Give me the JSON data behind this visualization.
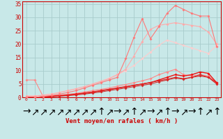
{
  "xlabel": "Vent moyen/en rafales ( km/h )",
  "xlim": [
    -0.5,
    23.5
  ],
  "ylim": [
    0,
    36
  ],
  "yticks": [
    0,
    5,
    10,
    15,
    20,
    25,
    30,
    35
  ],
  "xticks": [
    0,
    1,
    2,
    3,
    4,
    5,
    6,
    7,
    8,
    9,
    10,
    11,
    12,
    13,
    14,
    15,
    16,
    17,
    18,
    19,
    20,
    21,
    22,
    23
  ],
  "bg_color": "#c8e8e8",
  "grid_color": "#a8cccc",
  "series": [
    {
      "x": [
        0,
        1,
        2,
        3,
        4,
        5,
        6,
        7,
        8,
        9,
        10,
        11,
        12,
        13,
        14,
        15,
        16,
        17,
        18,
        19,
        20,
        21,
        22,
        23
      ],
      "y": [
        6.5,
        6.5,
        0.4,
        0.5,
        0.8,
        1.1,
        1.5,
        2.0,
        2.5,
        3.0,
        3.5,
        4.2,
        4.8,
        5.5,
        6.2,
        7.0,
        8.5,
        9.5,
        10.5,
        8.5,
        8.0,
        8.5,
        8.0,
        5.5
      ],
      "color": "#ff8888",
      "lw": 0.8,
      "ms": 2.0
    },
    {
      "x": [
        0,
        1,
        2,
        3,
        4,
        5,
        6,
        7,
        8,
        9,
        10,
        11,
        12,
        13,
        14,
        15,
        16,
        17,
        18,
        19,
        20,
        21,
        22,
        23
      ],
      "y": [
        0.0,
        0.0,
        0.1,
        0.2,
        0.4,
        0.6,
        0.9,
        1.2,
        1.6,
        2.0,
        2.5,
        3.0,
        3.5,
        4.0,
        4.5,
        5.0,
        5.8,
        6.5,
        7.2,
        6.8,
        7.5,
        8.5,
        7.5,
        5.5
      ],
      "color": "#cc3333",
      "lw": 0.8,
      "ms": 2.0
    },
    {
      "x": [
        0,
        1,
        2,
        3,
        4,
        5,
        6,
        7,
        8,
        9,
        10,
        11,
        12,
        13,
        14,
        15,
        16,
        17,
        18,
        19,
        20,
        21,
        22,
        23
      ],
      "y": [
        0.0,
        0.0,
        0.2,
        0.4,
        0.6,
        0.9,
        1.2,
        1.6,
        2.0,
        2.5,
        3.0,
        3.5,
        4.0,
        4.5,
        5.0,
        5.5,
        6.5,
        7.5,
        8.5,
        8.0,
        8.5,
        9.5,
        9.0,
        5.5
      ],
      "color": "#ee1111",
      "lw": 1.0,
      "ms": 2.0
    },
    {
      "x": [
        0,
        1,
        2,
        3,
        4,
        5,
        6,
        7,
        8,
        9,
        10,
        11,
        12,
        13,
        14,
        15,
        16,
        17,
        18,
        19,
        20,
        21,
        22,
        23
      ],
      "y": [
        0.0,
        0.0,
        0.2,
        0.3,
        0.5,
        0.8,
        1.1,
        1.5,
        1.9,
        2.4,
        2.9,
        3.4,
        3.9,
        4.5,
        5.0,
        5.6,
        6.2,
        6.8,
        7.5,
        7.0,
        7.5,
        8.0,
        7.5,
        5.0
      ],
      "color": "#dd2222",
      "lw": 0.8,
      "ms": 2.0
    },
    {
      "x": [
        0,
        1,
        2,
        3,
        4,
        5,
        6,
        7,
        8,
        9,
        10,
        11,
        12,
        13,
        14,
        15,
        16,
        17,
        18,
        19,
        20,
        21,
        22,
        23
      ],
      "y": [
        0.5,
        0.5,
        0.8,
        1.2,
        1.8,
        2.5,
        3.2,
        4.0,
        5.0,
        6.0,
        7.2,
        8.5,
        10.0,
        12.0,
        14.5,
        17.0,
        19.5,
        21.5,
        20.5,
        19.5,
        18.5,
        17.5,
        16.5,
        19.5
      ],
      "color": "#ffcccc",
      "lw": 0.8,
      "ms": 2.0
    },
    {
      "x": [
        0,
        1,
        2,
        3,
        4,
        5,
        6,
        7,
        8,
        9,
        10,
        11,
        12,
        13,
        14,
        15,
        16,
        17,
        18,
        19,
        20,
        21,
        22,
        23
      ],
      "y": [
        0.5,
        0.5,
        0.8,
        1.2,
        1.8,
        2.5,
        3.2,
        4.0,
        5.0,
        6.0,
        7.0,
        8.5,
        10.5,
        15.5,
        21.0,
        25.5,
        27.0,
        27.5,
        28.0,
        27.5,
        27.0,
        26.5,
        24.5,
        20.0
      ],
      "color": "#ffaaaa",
      "lw": 0.8,
      "ms": 2.0
    },
    {
      "x": [
        0,
        1,
        2,
        3,
        4,
        5,
        6,
        7,
        8,
        9,
        10,
        11,
        12,
        13,
        14,
        15,
        16,
        17,
        18,
        19,
        20,
        21,
        22,
        23
      ],
      "y": [
        0.0,
        0.0,
        0.3,
        0.7,
        1.2,
        1.8,
        2.5,
        3.5,
        4.5,
        5.5,
        6.5,
        7.5,
        14.5,
        22.5,
        29.5,
        22.0,
        26.5,
        31.5,
        34.5,
        33.0,
        31.5,
        30.5,
        30.5,
        19.0
      ],
      "color": "#ff7777",
      "lw": 0.8,
      "ms": 2.0
    }
  ],
  "arrows": [
    "→",
    "↗",
    "↗",
    "↗",
    "↗",
    "↗",
    "↗",
    "↗",
    "↗",
    "↑",
    "↗",
    "→",
    "↗",
    "↑",
    "↗",
    "→",
    "↗",
    "↑",
    "→",
    "↗",
    "→",
    "↑",
    "↗",
    "↑"
  ]
}
